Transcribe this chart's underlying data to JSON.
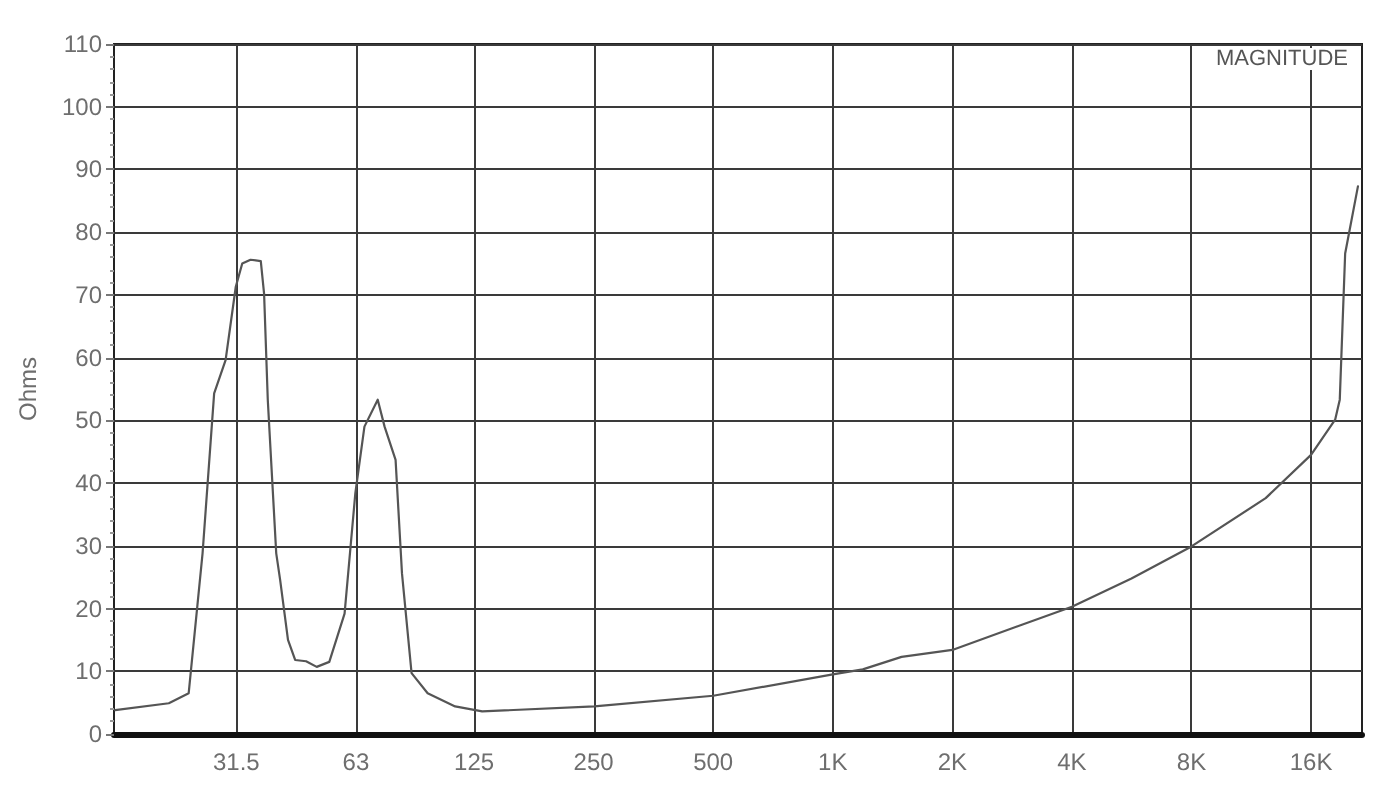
{
  "chart_data": {
    "type": "line",
    "title": "MAGNITUDE",
    "ylabel": "Ohms",
    "log": "x",
    "x": [
      15.6,
      21.3,
      23.9,
      25.9,
      27.7,
      29.6,
      31.4,
      32.6,
      34.2,
      36.3,
      37.0,
      37.8,
      39.7,
      40.6,
      42.5,
      44.3,
      47.2,
      50.2,
      54.0,
      59.0,
      62.8,
      66.2,
      71.5,
      74.4,
      79.3,
      82.3,
      87.0,
      95.5,
      112,
      131,
      251,
      500,
      1000,
      1190,
      1490,
      2000,
      4000,
      5650,
      8000,
      12300,
      16000,
      18400,
      18900,
      19500,
      21000
    ],
    "values": [
      3.8,
      4.9,
      6.5,
      28.8,
      54.3,
      59.6,
      71.3,
      75.0,
      75.6,
      75.4,
      70.2,
      53.3,
      28.8,
      24.6,
      15.0,
      11.8,
      11.6,
      10.7,
      11.5,
      19.2,
      38.4,
      49.0,
      53.3,
      49.0,
      43.7,
      25.6,
      9.7,
      6.5,
      4.4,
      3.6,
      4.4,
      6.1,
      9.5,
      10.3,
      12.3,
      13.4,
      20.3,
      24.8,
      29.9,
      37.6,
      44.5,
      50.1,
      53.3,
      76.6,
      87.3
    ],
    "color": "#555555",
    "xlim": [
      15.5,
      21500
    ],
    "xticks": [
      31.5,
      63,
      125,
      250,
      500,
      {
        "value": 1000,
        "label": "1K"
      },
      {
        "value": 2000,
        "label": "2K"
      },
      {
        "value": 4000,
        "label": "4K"
      },
      {
        "value": 8000,
        "label": "8K"
      },
      {
        "value": 16000,
        "label": "16K"
      }
    ],
    "ylim": [
      0,
      110
    ],
    "yticks": [
      0,
      10,
      20,
      30,
      40,
      50,
      60,
      70,
      80,
      90,
      100,
      110
    ],
    "grid": true,
    "marker": "none",
    "line_style": "solid"
  }
}
